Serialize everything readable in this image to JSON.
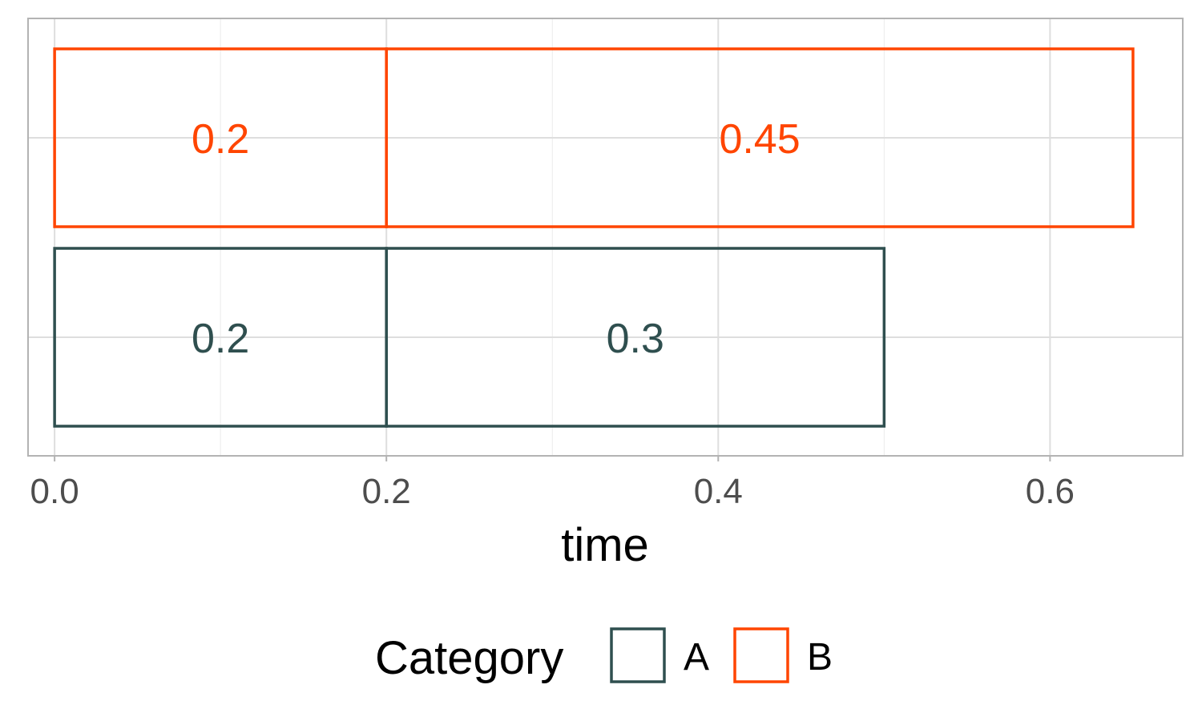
{
  "chart_data": {
    "type": "bar",
    "orientation": "horizontal",
    "stacked": true,
    "bar_fill": "none",
    "xlabel": "time",
    "ylabel": "",
    "xlim": [
      -0.016,
      0.68
    ],
    "xticks": [
      0.0,
      0.2,
      0.4,
      0.6
    ],
    "xtick_labels": [
      "0.0",
      "0.2",
      "0.4",
      "0.6"
    ],
    "x_minor_gridlines": [
      0.1,
      0.3,
      0.5
    ],
    "grid": true,
    "legend": {
      "title": "Category",
      "position": "bottom",
      "entries": [
        "A",
        "B"
      ]
    },
    "rows": [
      "A",
      "B"
    ],
    "series": [
      {
        "name": "A",
        "color": "#2F4F4F",
        "segments": [
          {
            "start": 0.0,
            "end": 0.2,
            "label": "0.2"
          },
          {
            "start": 0.2,
            "end": 0.5,
            "label": "0.3"
          }
        ]
      },
      {
        "name": "B",
        "color": "#FF4500",
        "segments": [
          {
            "start": 0.0,
            "end": 0.2,
            "label": "0.2"
          },
          {
            "start": 0.2,
            "end": 0.65,
            "label": "0.45"
          }
        ]
      }
    ]
  }
}
